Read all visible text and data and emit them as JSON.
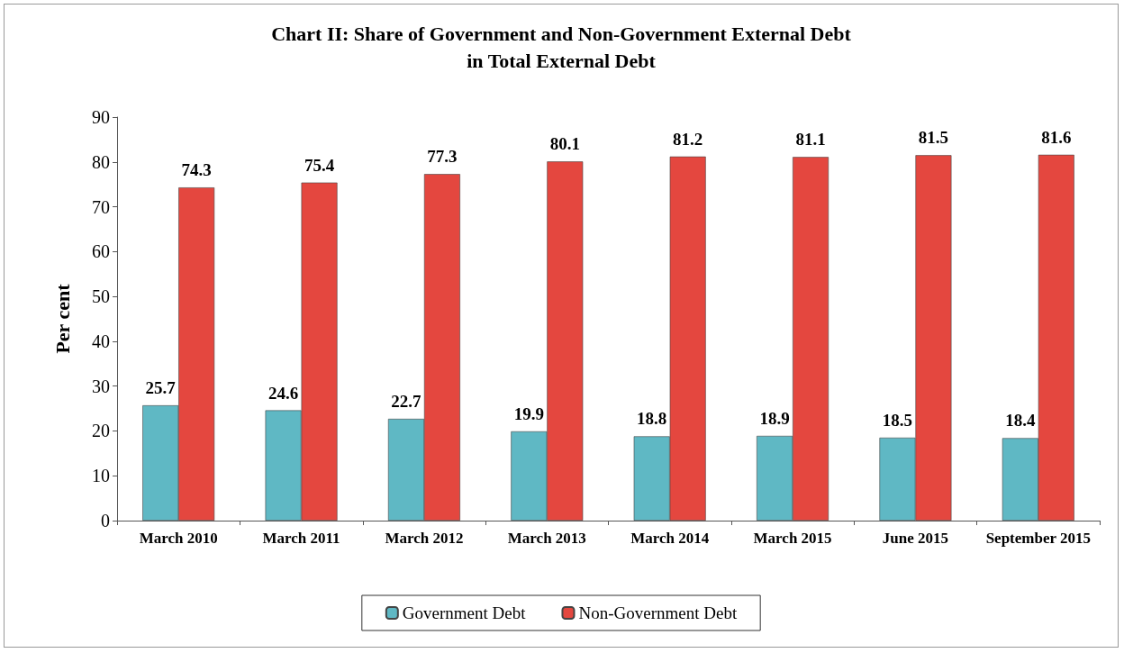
{
  "chart_data": {
    "type": "bar",
    "title": "Chart II: Share of Government and Non-Government External Debt\nin Total External Debt",
    "ylabel": "Per cent",
    "categories": [
      "March 2010",
      "March 2011",
      "March 2012",
      "March 2013",
      "March 2014",
      "March 2015",
      "June 2015",
      "September 2015"
    ],
    "series": [
      {
        "name": "Government Debt",
        "color": "#5fb8c4",
        "values": [
          25.7,
          24.6,
          22.7,
          19.9,
          18.8,
          18.9,
          18.5,
          18.4
        ]
      },
      {
        "name": "Non-Government Debt",
        "color": "#e4473f",
        "values": [
          74.3,
          75.4,
          77.3,
          80.1,
          81.2,
          81.1,
          81.5,
          81.6
        ]
      }
    ],
    "ylim": [
      0,
      90
    ],
    "yticks": [
      0,
      10,
      20,
      30,
      40,
      50,
      60,
      70,
      80,
      90
    ],
    "grid": false,
    "legend": "bottom",
    "data_labels": true
  }
}
